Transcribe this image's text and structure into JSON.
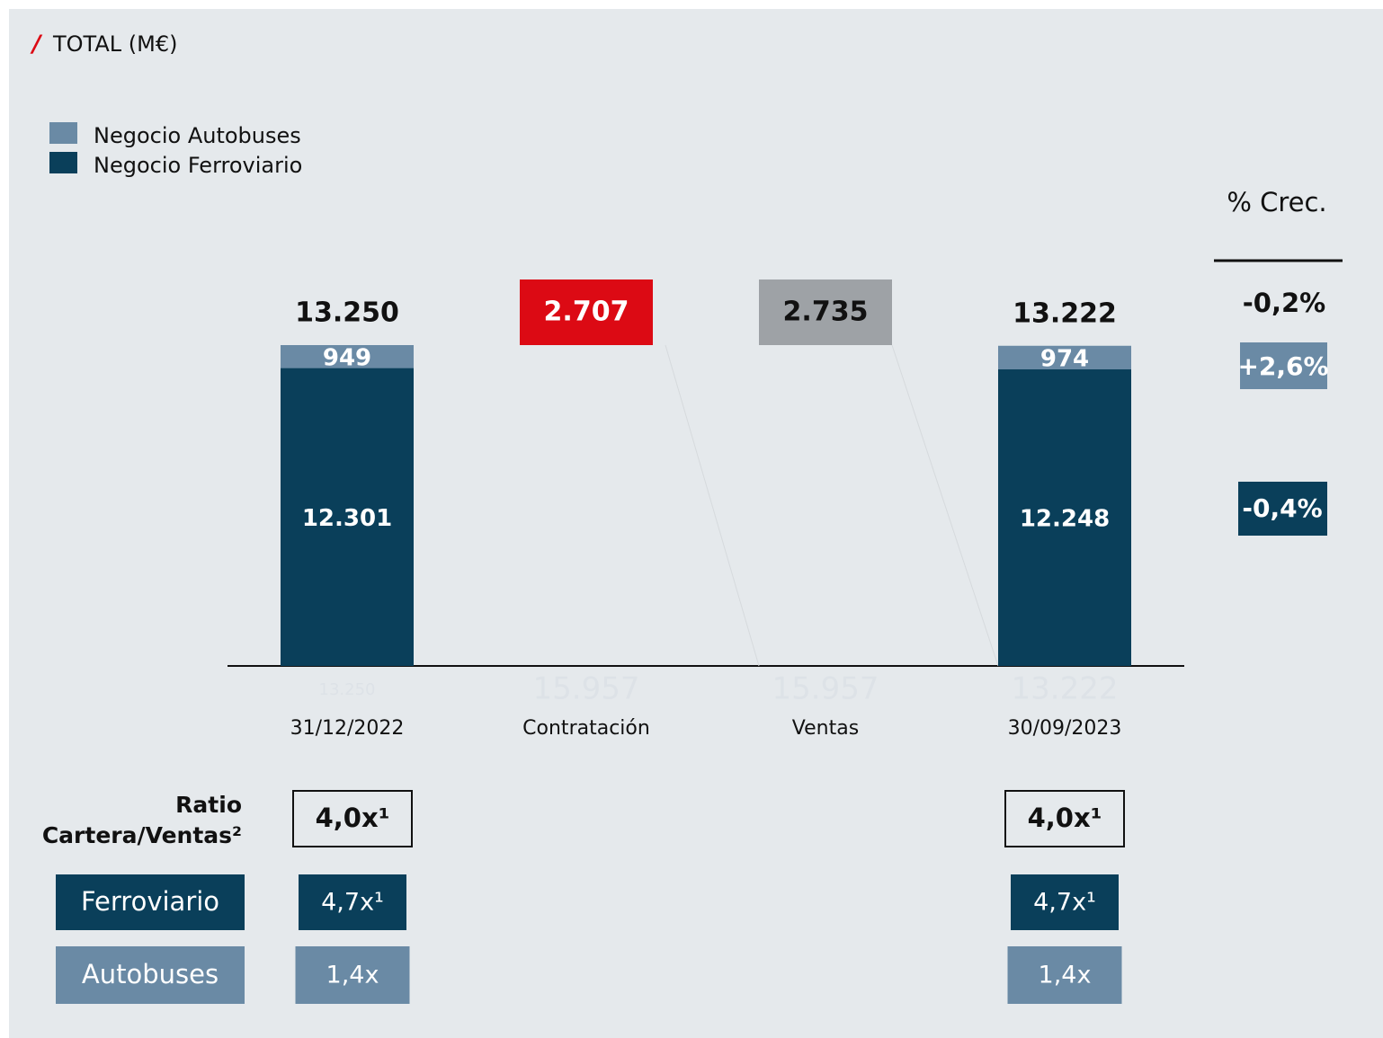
{
  "chart_data": {
    "type": "waterfall",
    "title": "TOTAL (M€)",
    "categories": [
      "31/12/2022",
      "Contratación",
      "Ventas",
      "30/09/2023"
    ],
    "series": [
      {
        "name": "Negocio Autobuses",
        "color": "#6a8aa5",
        "values": [
          949,
          null,
          null,
          974
        ]
      },
      {
        "name": "Negocio Ferroviario",
        "color": "#0a3f5a",
        "values": [
          12301,
          null,
          null,
          12248
        ]
      }
    ],
    "totals": [
      13250,
      null,
      null,
      13222
    ],
    "total_labels": [
      "13.250",
      null,
      null,
      "13.222"
    ],
    "series_value_labels": [
      [
        "949",
        null,
        null,
        "974"
      ],
      [
        "12.301",
        null,
        null,
        "12.248"
      ]
    ],
    "flows": {
      "values": [
        null,
        2707,
        2735,
        null
      ],
      "value_labels": [
        null,
        "2.707",
        "2.735",
        null
      ],
      "colors": [
        null,
        "#dc0a14",
        "#9ea2a6"
      ]
    },
    "running_labels": [
      "13.250",
      "15.957",
      "15.957",
      "13.222"
    ],
    "legend": "top-left"
  },
  "growth": {
    "title": "% Crec.",
    "total": "-0,2%",
    "autobuses": "+2,6%",
    "ferroviario": "-0,4%"
  },
  "ratio_table": {
    "title_lines": [
      "Ratio",
      "Cartera/Ventas²"
    ],
    "total": [
      "4,0x¹",
      "4,0x¹"
    ],
    "rows": [
      {
        "label": "Ferroviario",
        "values": [
          "4,7x¹",
          "4,7x¹"
        ]
      },
      {
        "label": "Autobuses",
        "values": [
          "1,4x",
          "1,4x"
        ]
      }
    ]
  }
}
